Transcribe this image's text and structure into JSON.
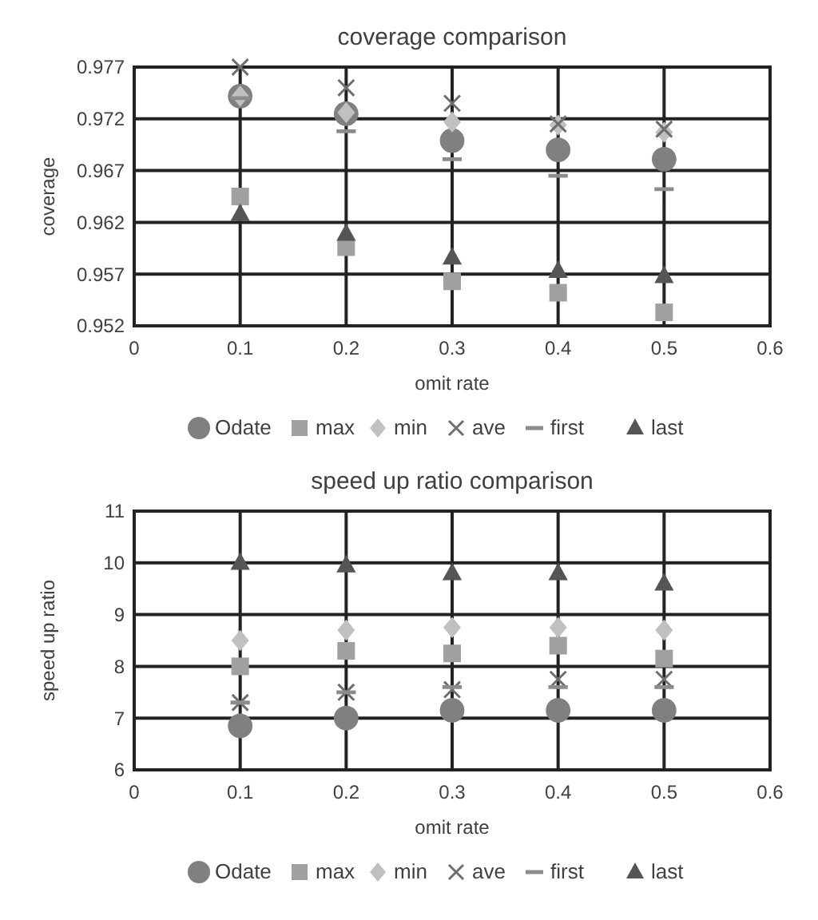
{
  "chart_data": [
    {
      "type": "scatter",
      "title": "coverage comparison",
      "xlabel": "omit rate",
      "ylabel": "coverage",
      "x": [
        0.1,
        0.2,
        0.3,
        0.4,
        0.5
      ],
      "xlim": [
        0,
        0.6
      ],
      "xticks": [
        0,
        0.1,
        0.2,
        0.3,
        0.4,
        0.5,
        0.6
      ],
      "ylim": [
        0.952,
        0.977
      ],
      "yticks": [
        0.952,
        0.957,
        0.962,
        0.967,
        0.972,
        0.977
      ],
      "grid": true,
      "legend": "bottom",
      "series": [
        {
          "name": "Odate",
          "color": "#808080",
          "marker": "circle",
          "values": [
            0.9742,
            0.9725,
            0.9699,
            0.969,
            0.9681
          ]
        },
        {
          "name": "max",
          "color": "#a0a0a0",
          "marker": "square",
          "values": [
            0.9645,
            0.9596,
            0.9563,
            0.9552,
            0.9533
          ]
        },
        {
          "name": "min",
          "color": "#c0c0c0",
          "marker": "diamond",
          "values": [
            0.9742,
            0.9726,
            0.9717,
            0.9714,
            0.9707
          ]
        },
        {
          "name": "ave",
          "color": "#6e6e6e",
          "marker": "cross",
          "values": [
            0.977,
            0.975,
            0.9735,
            0.9715,
            0.971
          ]
        },
        {
          "name": "first",
          "color": "#8c8c8c",
          "values": [
            0.974,
            0.9708,
            0.9681,
            0.9665,
            0.9652
          ]
        },
        {
          "name": "last",
          "color": "#555555",
          "marker": "triangle",
          "values": [
            0.9628,
            0.9609,
            0.9586,
            0.9573,
            0.9568
          ]
        }
      ]
    },
    {
      "type": "scatter",
      "title": "speed up ratio comparison",
      "xlabel": "omit rate",
      "ylabel": "speed up ratio",
      "x": [
        0.1,
        0.2,
        0.3,
        0.4,
        0.5
      ],
      "xlim": [
        0,
        0.6
      ],
      "xticks": [
        0,
        0.1,
        0.2,
        0.3,
        0.4,
        0.5,
        0.6
      ],
      "ylim": [
        6,
        11
      ],
      "yticks": [
        6,
        7,
        8,
        9,
        10,
        11
      ],
      "grid": true,
      "legend": "bottom",
      "series": [
        {
          "name": "Odate",
          "color": "#808080",
          "marker": "circle",
          "values": [
            6.85,
            7.0,
            7.15,
            7.15,
            7.15
          ]
        },
        {
          "name": "max",
          "color": "#a0a0a0",
          "marker": "square",
          "values": [
            8.0,
            8.3,
            8.25,
            8.4,
            8.15
          ]
        },
        {
          "name": "min",
          "color": "#c0c0c0",
          "marker": "diamond",
          "values": [
            8.5,
            8.7,
            8.75,
            8.75,
            8.7
          ]
        },
        {
          "name": "ave",
          "color": "#6e6e6e",
          "marker": "cross",
          "values": [
            7.3,
            7.5,
            7.55,
            7.75,
            7.75
          ]
        },
        {
          "name": "first",
          "color": "#8c8c8c",
          "values": [
            7.3,
            7.5,
            7.6,
            7.6,
            7.6
          ]
        },
        {
          "name": "last",
          "color": "#555555",
          "marker": "triangle",
          "values": [
            10.0,
            9.95,
            9.8,
            9.8,
            9.6
          ]
        }
      ]
    }
  ]
}
